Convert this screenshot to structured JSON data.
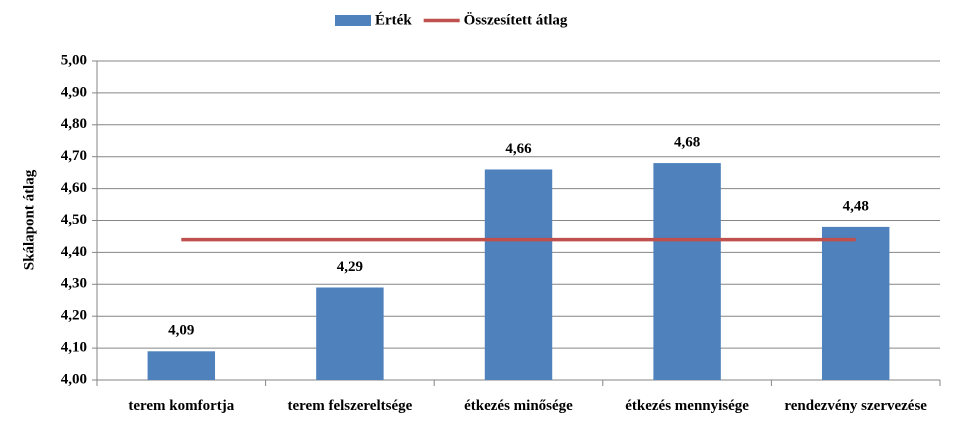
{
  "chart_data": {
    "type": "bar",
    "y_label": "Skálapont átlag",
    "categories": [
      "terem komfortja",
      "terem felszereltsége",
      "étkezés minősége",
      "étkezés mennyisége",
      "rendezvény szervezése"
    ],
    "series": [
      {
        "name": "Érték",
        "type": "bar",
        "color": "#4f81bd",
        "values": [
          4.09,
          4.29,
          4.66,
          4.68,
          4.48
        ],
        "value_labels": [
          "4,09",
          "4,29",
          "4,66",
          "4,68",
          "4,48"
        ]
      },
      {
        "name": "Összesített átlag",
        "type": "line",
        "color": "#c0504d",
        "values": [
          4.44,
          4.44,
          4.44,
          4.44,
          4.44
        ]
      }
    ],
    "ylim": [
      4.0,
      5.0
    ],
    "yticks": [
      {
        "value": 4.0,
        "label": "4,00"
      },
      {
        "value": 4.1,
        "label": "4,10"
      },
      {
        "value": 4.2,
        "label": "4,20"
      },
      {
        "value": 4.3,
        "label": "4,30"
      },
      {
        "value": 4.4,
        "label": "4,40"
      },
      {
        "value": 4.5,
        "label": "4,50"
      },
      {
        "value": 4.6,
        "label": "4,60"
      },
      {
        "value": 4.7,
        "label": "4,70"
      },
      {
        "value": 4.8,
        "label": "4,80"
      },
      {
        "value": 4.9,
        "label": "4,90"
      },
      {
        "value": 5.0,
        "label": "5,00"
      }
    ],
    "grid": true
  }
}
